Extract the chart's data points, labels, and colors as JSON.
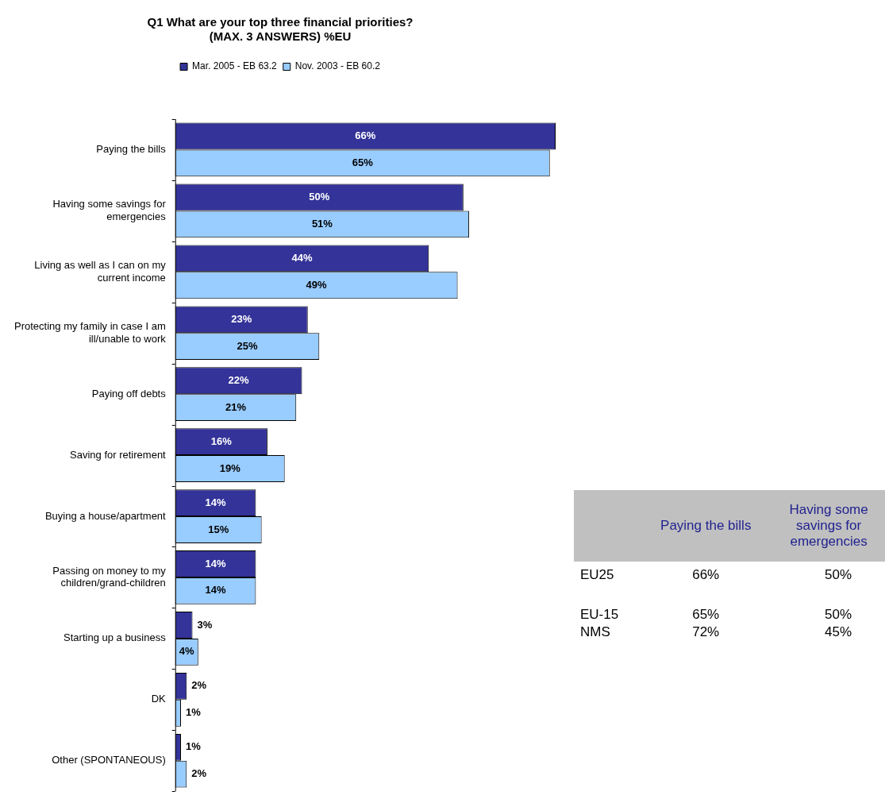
{
  "chart_data": [
    {
      "type": "bar",
      "orientation": "horizontal",
      "title": "Q1 What are your top three financial priorities?\n(MAX. 3 ANSWERS) %EU",
      "categories": [
        "Paying the bills",
        "Having some savings for emergencies",
        "Living as well as I can on my current income",
        "Protecting my family in case I am ill/unable to work",
        "Paying off debts",
        "Saving for retirement",
        "Buying a house/apartment",
        "Passing on money to my children/grand-children",
        "Starting up a business",
        "DK",
        "Other (SPONTANEOUS)"
      ],
      "series": [
        {
          "name": "Mar. 2005 - EB 63.2",
          "color": "#333399",
          "values": [
            66,
            50,
            44,
            23,
            22,
            16,
            14,
            14,
            3,
            2,
            1
          ],
          "value_labels": [
            "66%",
            "50%",
            "44%",
            "23%",
            "22%",
            "16%",
            "14%",
            "14%",
            "3%",
            "2%",
            "1%"
          ]
        },
        {
          "name": "Nov. 2003 - EB 60.2",
          "color": "#99ccff",
          "values": [
            65,
            51,
            49,
            25,
            21,
            19,
            15,
            14,
            4,
            1,
            2
          ],
          "value_labels": [
            "65%",
            "51%",
            "49%",
            "25%",
            "21%",
            "19%",
            "15%",
            "14%",
            "4%",
            "1%",
            "2%"
          ]
        }
      ],
      "legend": "top",
      "grid": false,
      "tick_labels": "y"
    },
    {
      "type": "other",
      "categories": [
        "Paying the bills",
        "Having some savings for emergencies"
      ],
      "y_categories": [
        "EU25",
        "EU-15",
        "NMS"
      ],
      "cell_labels": [
        [
          "66%",
          "50%"
        ],
        [
          "65%",
          "50%"
        ],
        [
          "72%",
          "45%"
        ]
      ]
    }
  ]
}
